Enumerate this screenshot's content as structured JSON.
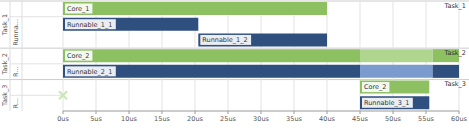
{
  "chart_data": {
    "type": "gantt",
    "xlim": [
      0,
      60
    ],
    "xticks": [
      {
        "value": 0,
        "label": "0us"
      },
      {
        "value": 5,
        "label": "5us"
      },
      {
        "value": 10,
        "label": "10us"
      },
      {
        "value": 15,
        "label": "15us"
      },
      {
        "value": 20,
        "label": "20us"
      },
      {
        "value": 25,
        "label": "25us"
      },
      {
        "value": 30,
        "label": "30us"
      },
      {
        "value": 35,
        "label": "35us"
      },
      {
        "value": 40,
        "label": "40us"
      },
      {
        "value": 45,
        "label": "45us"
      },
      {
        "value": 50,
        "label": "50us"
      },
      {
        "value": 55,
        "label": "55us"
      },
      {
        "value": 60,
        "label": "60us"
      }
    ],
    "grid": true,
    "groups": [
      {
        "name": "Task_1",
        "side_label": "Runna...",
        "rows": [
          {
            "label": "Core_1",
            "segments": [
              {
                "start": 0,
                "end": 40,
                "color": "#8dc060"
              }
            ]
          },
          {
            "label": "Runnable_1_1",
            "segments": [
              {
                "start": 0,
                "end": 20.5,
                "color": "#2f4f7f"
              }
            ]
          },
          {
            "label": "Runnable_1_2",
            "segments": [
              {
                "start": 20.5,
                "end": 40,
                "color": "#2f4f7f"
              }
            ]
          }
        ]
      },
      {
        "name": "Task_2",
        "side_label": "R...",
        "rows": [
          {
            "label": "Core_2",
            "segments": [
              {
                "start": 0,
                "end": 45,
                "color": "#8dc060"
              },
              {
                "start": 45,
                "end": 56,
                "color": "#b0d58e"
              },
              {
                "start": 56,
                "end": 60,
                "color": "#8dc060"
              }
            ]
          },
          {
            "label": "Runnable_2_1",
            "segments": [
              {
                "start": 0,
                "end": 45,
                "color": "#2f4f7f"
              },
              {
                "start": 45,
                "end": 56,
                "color": "#7b9bcf"
              },
              {
                "start": 56,
                "end": 60,
                "color": "#2f4f7f"
              }
            ]
          }
        ]
      },
      {
        "name": "Task_3",
        "side_label": "R...",
        "events": [
          {
            "x": 0,
            "marker": "x",
            "color": "#c9e6b4"
          }
        ],
        "rows": [
          {
            "label": "Core_2",
            "segments": [
              {
                "start": 45,
                "end": 55.5,
                "color": "#8dc060"
              }
            ]
          },
          {
            "label": "Runnable_3_1",
            "segments": [
              {
                "start": 45,
                "end": 55.5,
                "color": "#2f4f7f"
              }
            ]
          }
        ]
      }
    ]
  }
}
